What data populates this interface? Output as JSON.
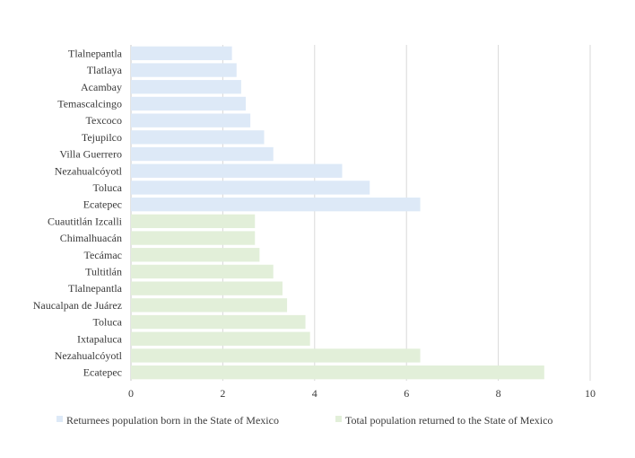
{
  "chart_data": {
    "type": "bar",
    "orientation": "horizontal",
    "title": "",
    "xlabel": "",
    "ylabel": "",
    "xlim": [
      0,
      10
    ],
    "xticks": [
      0,
      2,
      4,
      6,
      8,
      10
    ],
    "grid": "vertical",
    "legend_position": "bottom",
    "series": [
      {
        "name": "Returnees population born in the State of Mexico",
        "color": "#dde9f7",
        "categories": [
          "Tlalnepantla",
          "Tlatlaya",
          "Acambay",
          "Temascalcingo",
          "Texcoco",
          "Tejupilco",
          "Villa Guerrero",
          "Nezahualcóyotl",
          "Toluca",
          "Ecatepec"
        ],
        "values": [
          2.2,
          2.3,
          2.4,
          2.5,
          2.6,
          2.9,
          3.1,
          4.6,
          5.2,
          6.3
        ]
      },
      {
        "name": "Total population returned to the State of Mexico",
        "color": "#e2efd9",
        "categories": [
          "Cuautitlán Izcalli",
          "Chimalhuacán",
          "Tecámac",
          "Tultitlán",
          "Tlalnepantla",
          "Naucalpan de Juárez",
          "Toluca",
          "Ixtapaluca",
          "Nezahualcóyotl",
          "Ecatepec"
        ],
        "values": [
          2.7,
          2.7,
          2.8,
          3.1,
          3.3,
          3.4,
          3.8,
          3.9,
          6.3,
          9.0
        ]
      }
    ]
  }
}
